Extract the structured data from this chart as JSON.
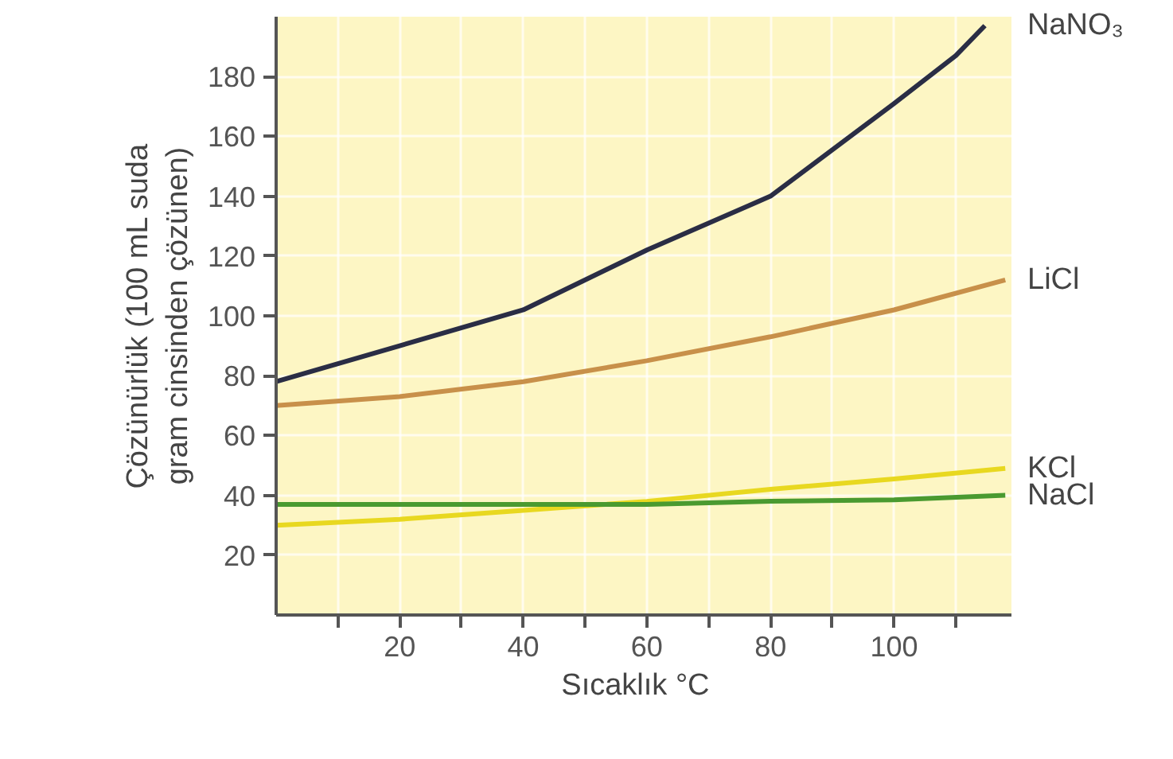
{
  "chart_data": {
    "type": "line",
    "xlabel": "Sıcaklık   °C",
    "ylabel": "Çözünürlük (100 mL suda\ngram cinsinden çözünen)",
    "xlim": [
      0,
      119
    ],
    "ylim": [
      0,
      200
    ],
    "xticks": [
      {
        "value": 10,
        "label": null
      },
      20,
      {
        "value": 30,
        "label": null
      },
      40,
      {
        "value": 50,
        "label": null
      },
      60,
      {
        "value": 70,
        "label": null
      },
      80,
      {
        "value": 90,
        "label": null
      },
      100,
      {
        "value": 110,
        "label": null
      }
    ],
    "yticks": [
      20,
      40,
      60,
      80,
      100,
      120,
      140,
      160,
      180
    ],
    "grid": true,
    "marker": "none",
    "line_style": "solid",
    "series": [
      {
        "name": "NaNO₃",
        "color": "#2a2d45",
        "x": [
          0,
          20,
          40,
          60,
          80,
          100,
          110,
          114.7
        ],
        "values": [
          78,
          90,
          102,
          122,
          140,
          171,
          187,
          197
        ]
      },
      {
        "name": "LiCl",
        "color": "#c8904a",
        "x": [
          0,
          20,
          40,
          60,
          80,
          100,
          118
        ],
        "values": [
          70,
          73,
          78,
          85,
          93,
          102,
          112
        ]
      },
      {
        "name": "KCl",
        "color": "#e8d820",
        "x": [
          0,
          20,
          40,
          60,
          80,
          100,
          118
        ],
        "values": [
          30,
          32,
          35,
          38,
          42,
          45.5,
          49
        ]
      },
      {
        "name": "NaCl",
        "color": "#4a9a30",
        "x": [
          0,
          20,
          40,
          60,
          80,
          100,
          118
        ],
        "values": [
          37,
          37,
          37,
          37,
          38,
          38.5,
          40
        ]
      }
    ]
  }
}
